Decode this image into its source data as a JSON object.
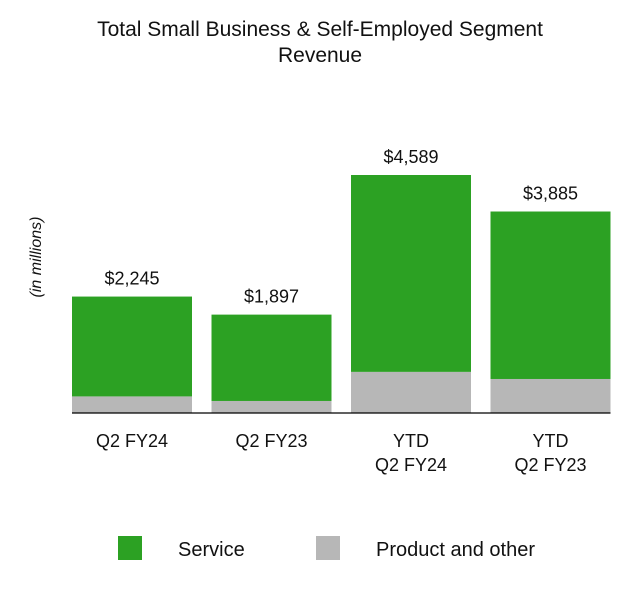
{
  "chart_data": {
    "type": "bar",
    "stacked": true,
    "title": [
      "Total Small Business & Self-Employed Segment",
      "Revenue"
    ],
    "ylabel": "(in millions)",
    "categories": [
      [
        "Q2 FY24"
      ],
      [
        "Q2 FY23"
      ],
      [
        "YTD",
        "Q2 FY24"
      ],
      [
        "YTD",
        "Q2 FY23"
      ]
    ],
    "totals_labels": [
      "$2,245",
      "$1,897",
      "$4,589",
      "$3,885"
    ],
    "series": [
      {
        "name": "Product and other",
        "color": "#b7b7b7",
        "values": [
          320,
          232,
          793,
          656
        ]
      },
      {
        "name": "Service",
        "color": "#2ca123",
        "values": [
          1925,
          1665,
          3796,
          3229
        ]
      }
    ],
    "legend": [
      {
        "label": "Service",
        "color": "#2ca123"
      },
      {
        "label": "Product and other",
        "color": "#b7b7b7"
      }
    ],
    "ylim": [
      0,
      4589
    ],
    "grid": false,
    "legend_position": "bottom"
  }
}
